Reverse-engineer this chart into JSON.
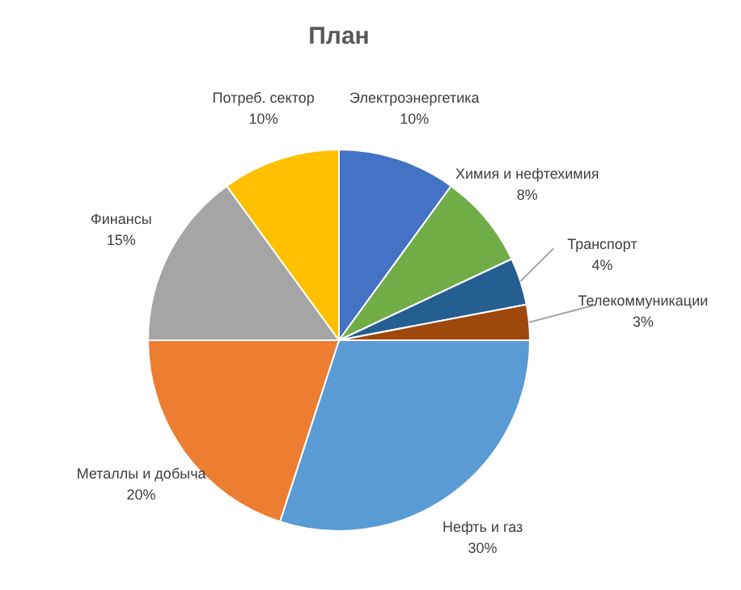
{
  "chart_data": {
    "type": "pie",
    "title": "План",
    "categories": [
      "Электроэнергетика",
      "Химия и нефтехимия",
      "Транспорт",
      "Телекоммуникации",
      "Нефть и газ",
      "Металлы и добыча",
      "Финансы",
      "Потреб. сектор"
    ],
    "values": [
      10,
      8,
      4,
      3,
      30,
      20,
      15,
      10
    ],
    "colors": [
      "#4472c4",
      "#70ad47",
      "#255e91",
      "#9e480e",
      "#5b9bd5",
      "#ed7d31",
      "#a5a5a5",
      "#ffc000"
    ],
    "value_labels": [
      "10%",
      "8%",
      "4%",
      "3%",
      "30%",
      "20%",
      "15%",
      "10%"
    ]
  }
}
